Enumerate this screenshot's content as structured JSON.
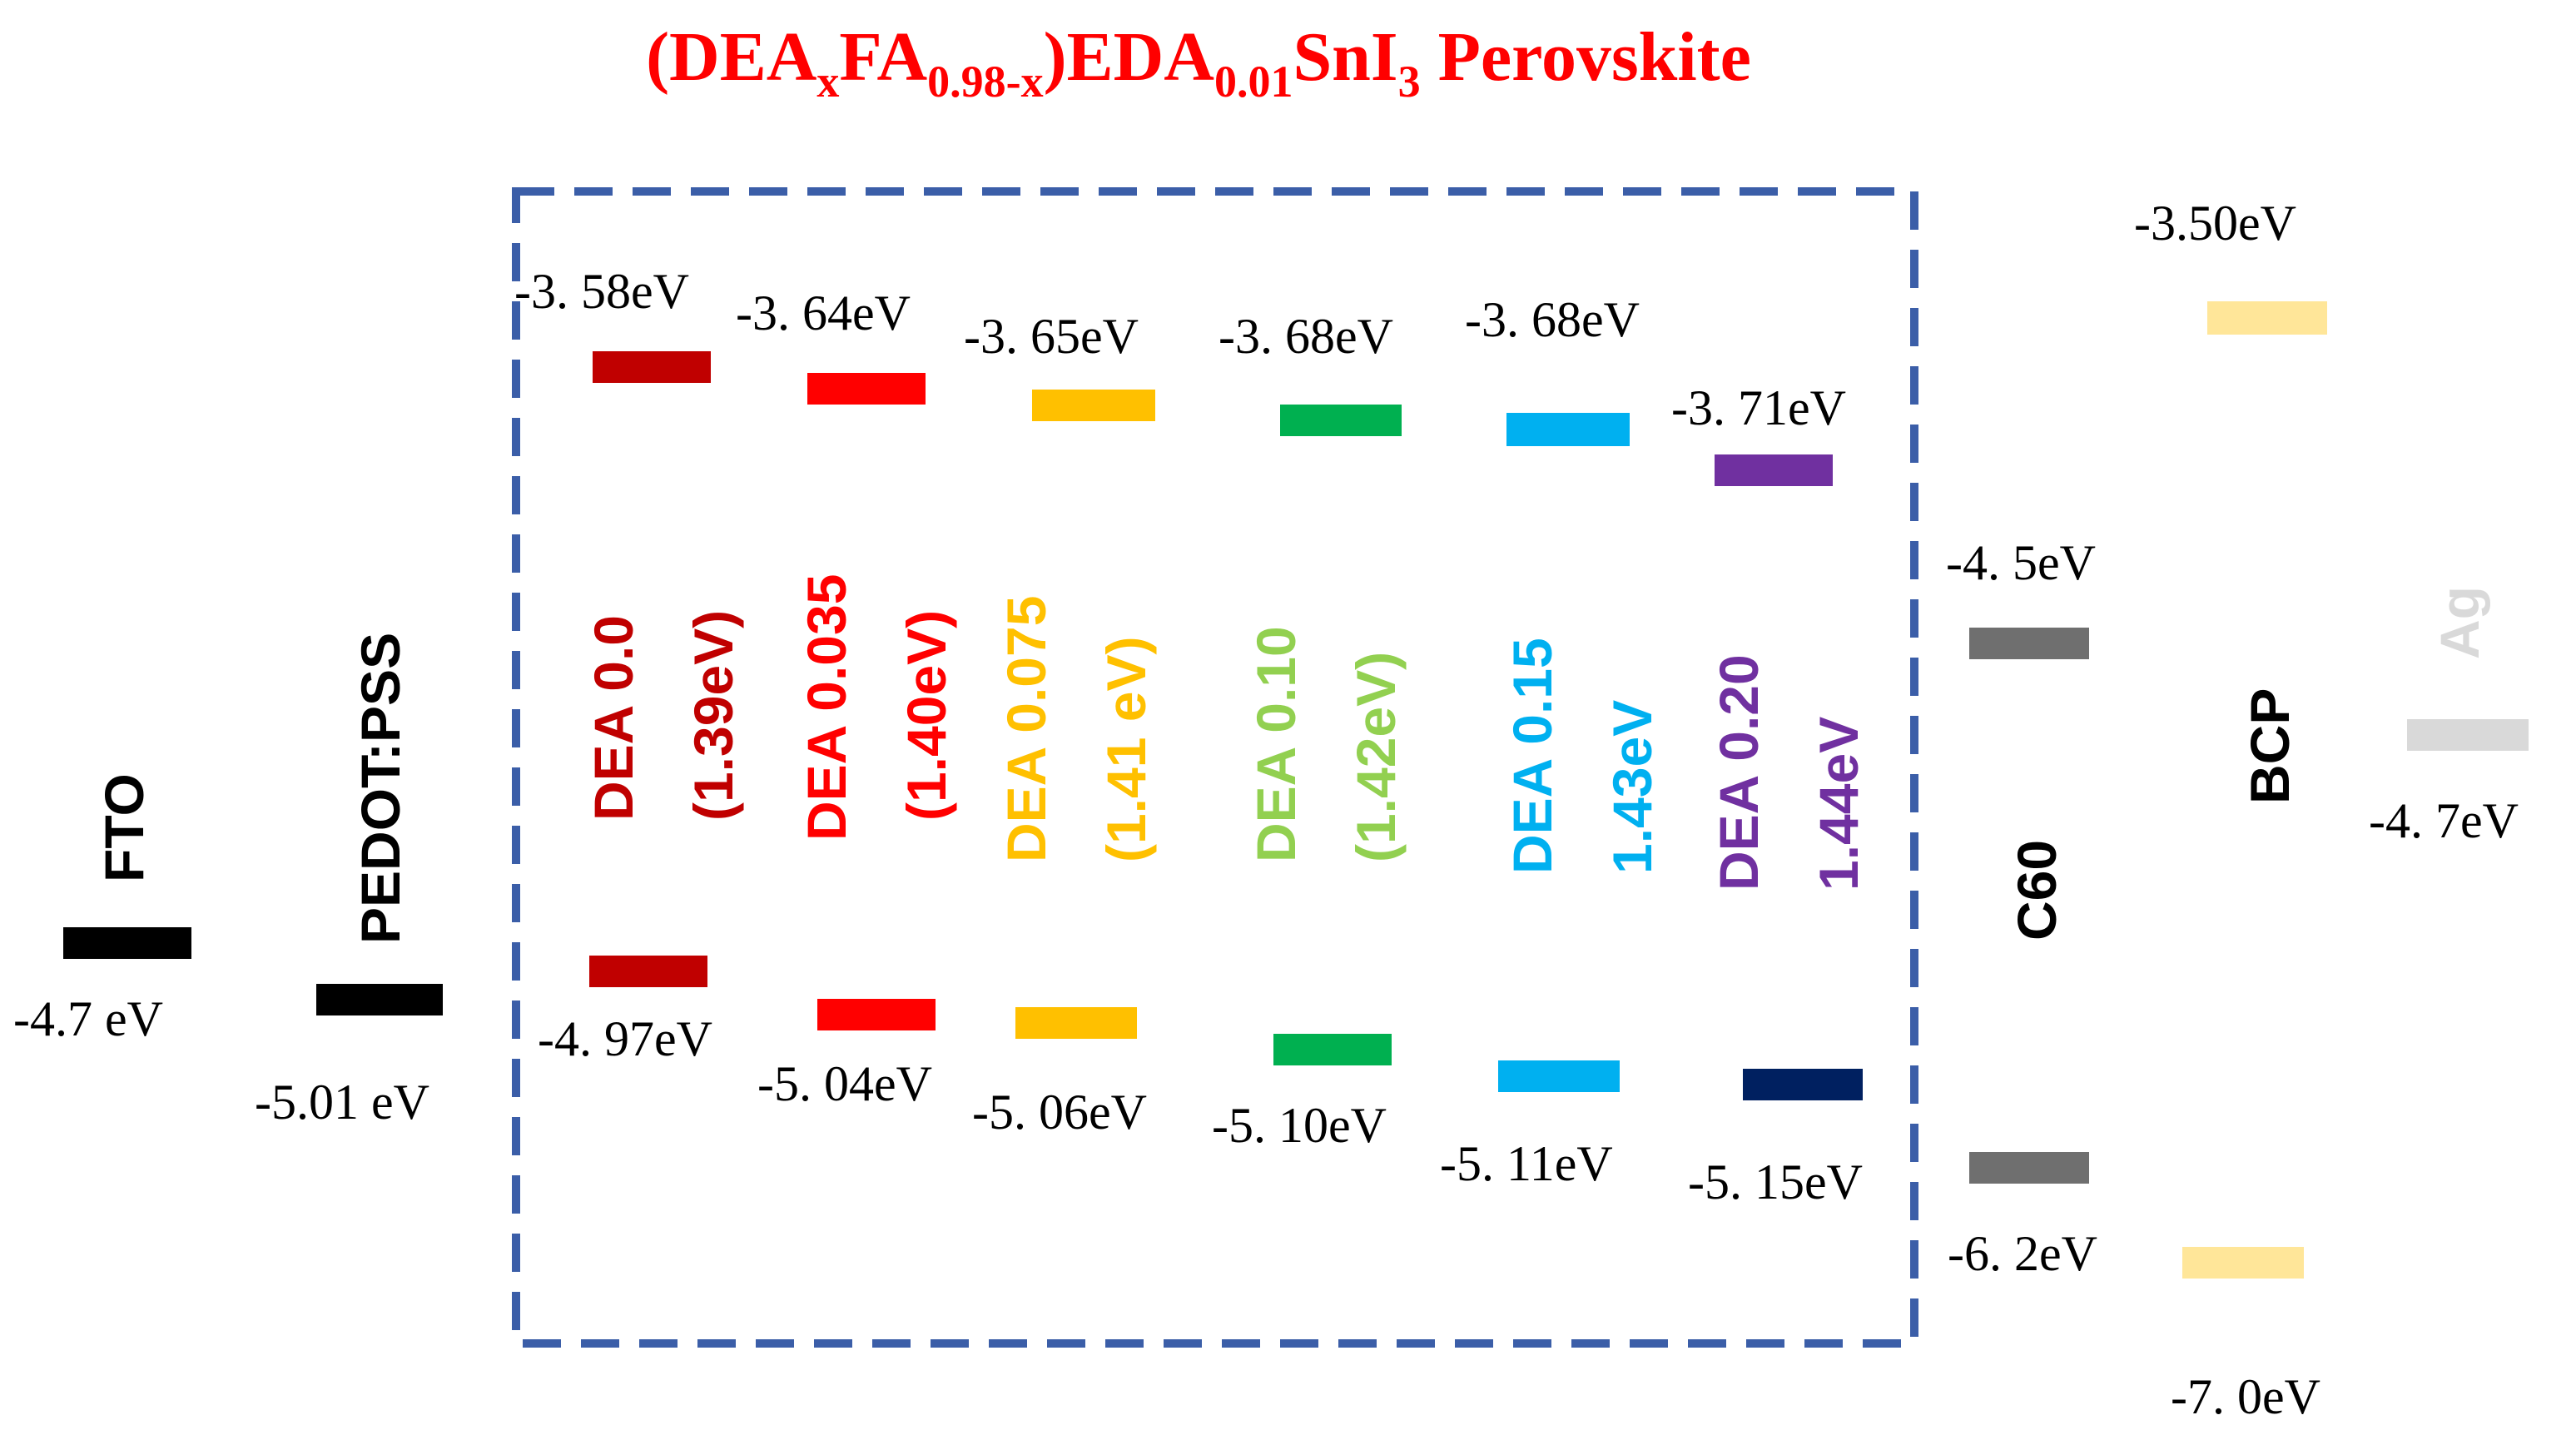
{
  "title": {
    "prefix": "(DEA",
    "sub_x": "x",
    "fa": "FA",
    "sub_fa": "0.98-x",
    "eda": ")EDA",
    "sub_eda": "0.01",
    "sni": "SnI",
    "sub_i": "3",
    "suffix": " Perovskite"
  },
  "colors": {
    "title": "#ff0000",
    "frame": "#3b5ea8",
    "dea_0_0": "#c00000",
    "dea_0_035": "#ff0000",
    "dea_0_075": "#ffc000",
    "dea_0_10_bar": "#00b050",
    "dea_0_10_text": "#92d050",
    "dea_0_15": "#00b0f0",
    "dea_0_20": "#7030a0",
    "dea_0_20_vb": "#002060",
    "c60": "#6f6f6f",
    "bcp": "#ffe699",
    "ag": "#d9d9d9"
  },
  "layers": {
    "fto": {
      "name": "FTO",
      "level": "-4.7 eV"
    },
    "pedot": {
      "name": "PEDOT:PSS",
      "level": "-5.01 eV"
    },
    "c60": {
      "name": "C60",
      "cb": "-4. 5eV",
      "vb": "-6. 2eV"
    },
    "bcp": {
      "name": "BCP",
      "cb": "-3.50eV",
      "vb": "-7. 0eV"
    },
    "ag": {
      "name": "Ag",
      "level": "-4. 7eV"
    }
  },
  "perovskites": [
    {
      "name": "DEA 0.0",
      "gap": "(1.39eV)",
      "cb": "-3. 58eV",
      "vb": "-4. 97eV"
    },
    {
      "name": "DEA 0.035",
      "gap": "(1.40eV)",
      "cb": "-3. 64eV",
      "vb": "-5. 04eV"
    },
    {
      "name": "DEA 0.075",
      "gap": "(1.41 eV)",
      "cb": "-3. 65eV",
      "vb": "-5. 06eV"
    },
    {
      "name": "DEA 0.10",
      "gap": "(1.42eV)",
      "cb": "-3. 68eV",
      "vb": "-5. 10eV"
    },
    {
      "name": "DEA 0.15",
      "gap": "1.43eV",
      "cb": "-3. 68eV",
      "vb": "-5. 11eV"
    },
    {
      "name": "DEA 0.20",
      "gap": "1.44eV",
      "cb": "-3. 71eV",
      "vb": "-5. 15eV"
    }
  ]
}
